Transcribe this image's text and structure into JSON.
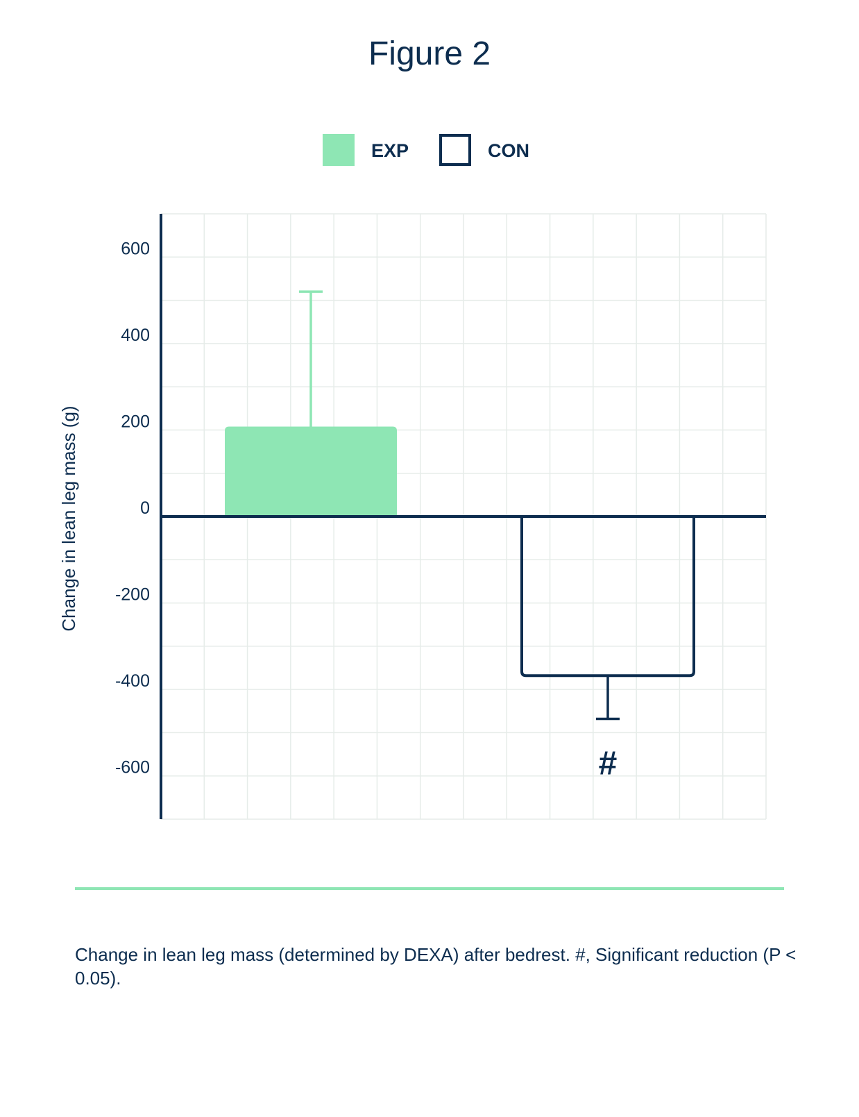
{
  "figure_title": "Figure 2",
  "caption": "Change in lean leg mass (determined by DEXA) after bedrest. #, Significant reduction (P < 0.05).",
  "colors": {
    "navy": "#0d2d4f",
    "green": "#8ee6b4",
    "grid": "#e6ece9"
  },
  "chart_data": {
    "type": "bar",
    "title": "",
    "xlabel": "",
    "ylabel": "Change in lean leg mass (g)",
    "ylim": [
      -700,
      700
    ],
    "yticks": [
      600,
      400,
      200,
      0,
      -200,
      -400,
      -600
    ],
    "grid": true,
    "legend_position": "top-center",
    "categories": [
      "EXP",
      "CON"
    ],
    "series": [
      {
        "name": "EXP",
        "value": 208,
        "error": 312,
        "style": "filled",
        "color": "#8ee6b4"
      },
      {
        "name": "CON",
        "value": -368,
        "error": 100,
        "style": "outline",
        "color": "#0d2d4f"
      }
    ],
    "annotations": [
      {
        "text": "#",
        "category": "CON"
      }
    ]
  }
}
